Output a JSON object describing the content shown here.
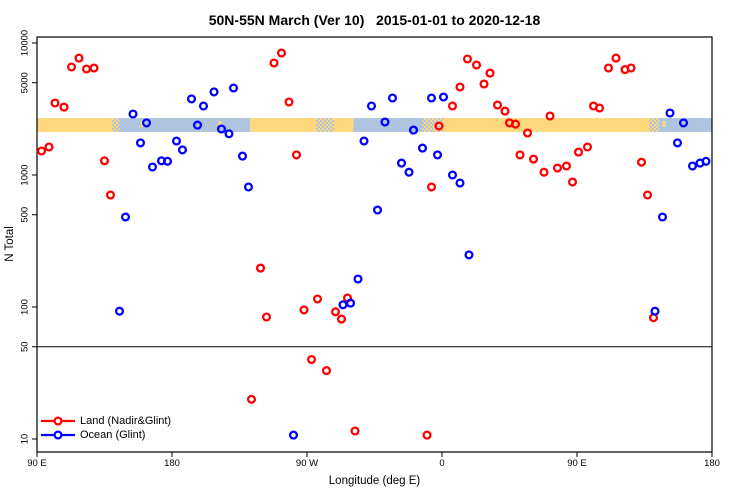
{
  "title": "50N-55N March (Ver 10)   2015-01-01 to 2020-12-18",
  "axes": {
    "xlabel": "Longitude (deg E)",
    "ylabel": "N Total"
  },
  "legend": {
    "items": [
      {
        "label": "Land (Nadir&Glint)",
        "color": "#ff0000"
      },
      {
        "label": "Ocean (Glint)",
        "color": "#0000ff"
      }
    ]
  },
  "colors": {
    "land_series": "#ff0000",
    "ocean_series": "#0000ff",
    "band_land": "#ffd87d",
    "band_ocean": "#aec4df",
    "axis": "#000000"
  },
  "chart_data": {
    "type": "scatter",
    "title": "50N-55N March (Ver 10)   2015-01-01 to 2020-12-18",
    "xlabel": "Longitude (deg E)",
    "ylabel": "N Total",
    "x_axis": {
      "range": [
        90,
        540
      ],
      "ticks": [
        90,
        180,
        270,
        360,
        450,
        540
      ],
      "tick_labels": [
        "90 E",
        "180",
        "90 W",
        "0",
        "90 E",
        "180"
      ],
      "note": "longitude wraps eastward: 90E to 180 to 90W to 0 to 90E to 180"
    },
    "y_axis": {
      "scale": "log10",
      "range": [
        8,
        11000
      ],
      "ticks": [
        10,
        50,
        100,
        500,
        1000,
        5000,
        10000
      ],
      "tick_labels": [
        "10",
        "50",
        "100",
        "500",
        "1000",
        "5000",
        "10000"
      ]
    },
    "reference_line_n": 50,
    "surface_band": {
      "n_top": 2700,
      "n_bottom": 2120,
      "land_color": "#ffd87d",
      "ocean_color": "#aec4df",
      "segments": [
        {
          "from": 90,
          "to": 140,
          "type": "land"
        },
        {
          "from": 140,
          "to": 145,
          "type": "mixed"
        },
        {
          "from": 145,
          "to": 232,
          "type": "ocean"
        },
        {
          "from": 232,
          "to": 276,
          "type": "land"
        },
        {
          "from": 276,
          "to": 288,
          "type": "mixed"
        },
        {
          "from": 288,
          "to": 301,
          "type": "land"
        },
        {
          "from": 301,
          "to": 347,
          "type": "ocean"
        },
        {
          "from": 347,
          "to": 361,
          "type": "mixed"
        },
        {
          "from": 361,
          "to": 498,
          "type": "land"
        },
        {
          "from": 498,
          "to": 505,
          "type": "mixed"
        },
        {
          "from": 505,
          "to": 540,
          "type": "ocean"
        }
      ],
      "speckles": [
        {
          "lon": 160
        },
        {
          "lon": 212
        },
        {
          "lon": 508
        }
      ]
    },
    "series": [
      {
        "name": "Land (Nadir&Glint)",
        "color": "#ff0000",
        "points": [
          [
            118,
            7690
          ],
          [
            113,
            6580
          ],
          [
            123,
            6350
          ],
          [
            128,
            6470
          ],
          [
            102,
            3510
          ],
          [
            108,
            3270
          ],
          [
            93,
            1520
          ],
          [
            98,
            1630
          ],
          [
            135,
            1280
          ],
          [
            139,
            705
          ],
          [
            239,
            197
          ],
          [
            243,
            84
          ],
          [
            233,
            20
          ],
          [
            253,
            8400
          ],
          [
            248,
            7050
          ],
          [
            258,
            3570
          ],
          [
            263,
            1420
          ],
          [
            277,
            115
          ],
          [
            297,
            117
          ],
          [
            268,
            95
          ],
          [
            289,
            92
          ],
          [
            293,
            81
          ],
          [
            273,
            40
          ],
          [
            283,
            33
          ],
          [
            302,
            11.5
          ],
          [
            350,
            10.7
          ],
          [
            372,
            4640
          ],
          [
            377,
            7570
          ],
          [
            383,
            6810
          ],
          [
            392,
            5920
          ],
          [
            388,
            4890
          ],
          [
            367,
            3330
          ],
          [
            358,
            2350
          ],
          [
            353,
            811
          ],
          [
            397,
            3390
          ],
          [
            402,
            3050
          ],
          [
            405,
            2480
          ],
          [
            409,
            2430
          ],
          [
            417,
            2080
          ],
          [
            432,
            2800
          ],
          [
            412,
            1420
          ],
          [
            421,
            1320
          ],
          [
            428,
            1050
          ],
          [
            437,
            1130
          ],
          [
            443,
            1170
          ],
          [
            447,
            885
          ],
          [
            461,
            3330
          ],
          [
            465,
            3220
          ],
          [
            451,
            1490
          ],
          [
            457,
            1630
          ],
          [
            476,
            7690
          ],
          [
            471,
            6470
          ],
          [
            482,
            6290
          ],
          [
            486,
            6470
          ],
          [
            493,
            1250
          ],
          [
            497,
            705
          ],
          [
            501,
            83
          ]
        ]
      },
      {
        "name": "Ocean (Glint)",
        "color": "#0000ff",
        "points": [
          [
            154,
            2900
          ],
          [
            163,
            2480
          ],
          [
            193,
            3770
          ],
          [
            201,
            3330
          ],
          [
            208,
            4260
          ],
          [
            221,
            4560
          ],
          [
            213,
            2230
          ],
          [
            218,
            2050
          ],
          [
            197,
            2390
          ],
          [
            159,
            1750
          ],
          [
            183,
            1810
          ],
          [
            187,
            1550
          ],
          [
            167,
            1150
          ],
          [
            173,
            1280
          ],
          [
            177,
            1270
          ],
          [
            227,
            1390
          ],
          [
            231,
            811
          ],
          [
            149,
            481
          ],
          [
            145,
            93
          ],
          [
            308,
            1810
          ],
          [
            313,
            3330
          ],
          [
            322,
            2520
          ],
          [
            327,
            3830
          ],
          [
            341,
            2190
          ],
          [
            347,
            1600
          ],
          [
            353,
            3830
          ],
          [
            361,
            3900
          ],
          [
            357,
            1420
          ],
          [
            333,
            1230
          ],
          [
            338,
            1050
          ],
          [
            367,
            1000
          ],
          [
            372,
            870
          ],
          [
            317,
            543
          ],
          [
            378,
            248
          ],
          [
            304,
            163
          ],
          [
            294,
            104
          ],
          [
            299,
            107
          ],
          [
            261,
            10.7
          ],
          [
            502,
            93
          ],
          [
            507,
            481
          ],
          [
            512,
            2950
          ],
          [
            517,
            1750
          ],
          [
            521,
            2480
          ],
          [
            527,
            1170
          ],
          [
            532,
            1230
          ],
          [
            536,
            1270
          ]
        ]
      }
    ]
  }
}
